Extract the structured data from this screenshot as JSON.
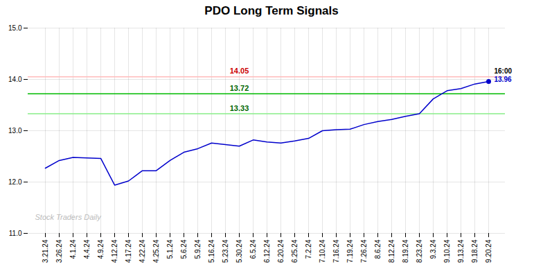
{
  "chart_data": {
    "type": "line",
    "title": "PDO Long Term Signals",
    "categories": [
      "3.21.24",
      "3.26.24",
      "4.1.24",
      "4.4.24",
      "4.9.24",
      "4.12.24",
      "4.17.24",
      "4.22.24",
      "4.25.24",
      "5.1.24",
      "5.6.24",
      "5.9.24",
      "5.16.24",
      "5.23.24",
      "5.30.24",
      "6.5.24",
      "6.12.24",
      "6.20.24",
      "6.25.24",
      "7.2.24",
      "7.10.24",
      "7.16.24",
      "7.19.24",
      "7.26.24",
      "8.6.24",
      "8.12.24",
      "8.19.24",
      "8.23.24",
      "9.3.24",
      "9.10.24",
      "9.13.24",
      "9.18.24",
      "9.20.24"
    ],
    "values": [
      12.27,
      12.42,
      12.48,
      12.47,
      12.46,
      11.94,
      12.02,
      12.22,
      12.22,
      12.42,
      12.58,
      12.65,
      12.76,
      12.73,
      12.7,
      12.82,
      12.78,
      12.76,
      12.8,
      12.85,
      13.0,
      13.02,
      13.03,
      13.12,
      13.18,
      13.22,
      13.28,
      13.33,
      13.62,
      13.78,
      13.82,
      13.91,
      13.96
    ],
    "color": "#0000cc",
    "ylim": [
      11,
      15
    ],
    "yticks": [
      11,
      12,
      13,
      14,
      15
    ],
    "grid": true,
    "reference_lines": [
      {
        "value": 14.05,
        "label": "14.05",
        "color": "#ffbbbb",
        "label_color": "#cc0000"
      },
      {
        "value": 13.72,
        "label": "13.72",
        "color": "#00bb00",
        "label_color": "#006600"
      },
      {
        "value": 13.33,
        "label": "13.33",
        "color": "#88ee88",
        "label_color": "#006600"
      }
    ],
    "annotations": [
      {
        "text": "16:00"
      },
      {
        "text": "13.96",
        "color": "#0000cc"
      }
    ],
    "watermark": "Stock Traders Daily"
  }
}
